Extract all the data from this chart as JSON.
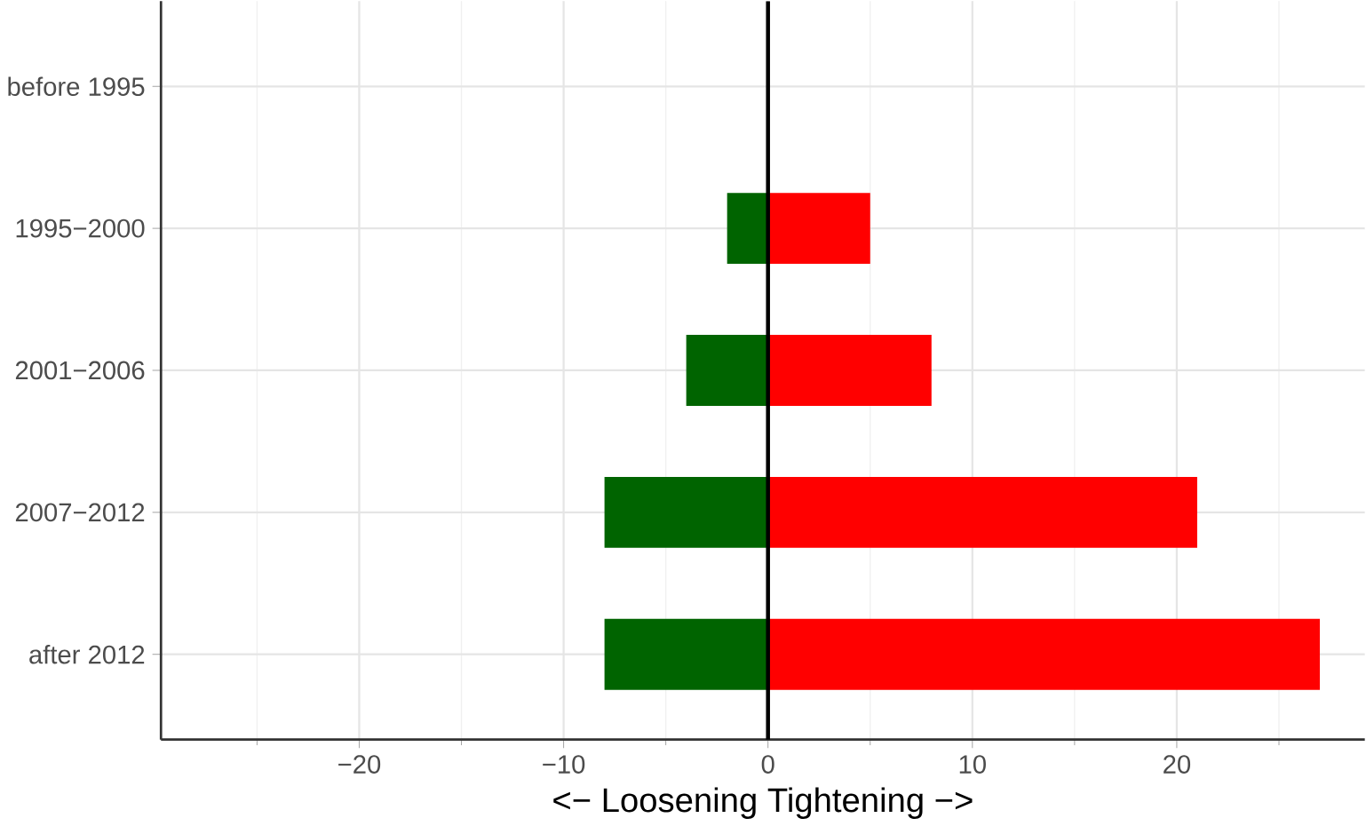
{
  "chart_data": {
    "type": "bar",
    "orientation": "horizontal",
    "xlabel": "<− Loosening   Tightening −>",
    "categories": [
      "before 1995",
      "1995−2000",
      "2001−2006",
      "2007−2012",
      "after 2012"
    ],
    "series": [
      {
        "color": "#006400",
        "values": [
          0,
          -2,
          -4,
          -8,
          -8
        ]
      },
      {
        "color": "#ff0000",
        "values": [
          0,
          5,
          8,
          21,
          27
        ]
      }
    ],
    "xlim": [
      -29.7,
      29.2
    ],
    "xticks": [
      {
        "value": -20,
        "label": "−20"
      },
      {
        "value": -10,
        "label": "−10"
      },
      0,
      10,
      20
    ],
    "grid": true,
    "stacked": true,
    "ref_lines": [
      {
        "axis": "x",
        "value": 0,
        "color": "#000000"
      }
    ]
  }
}
